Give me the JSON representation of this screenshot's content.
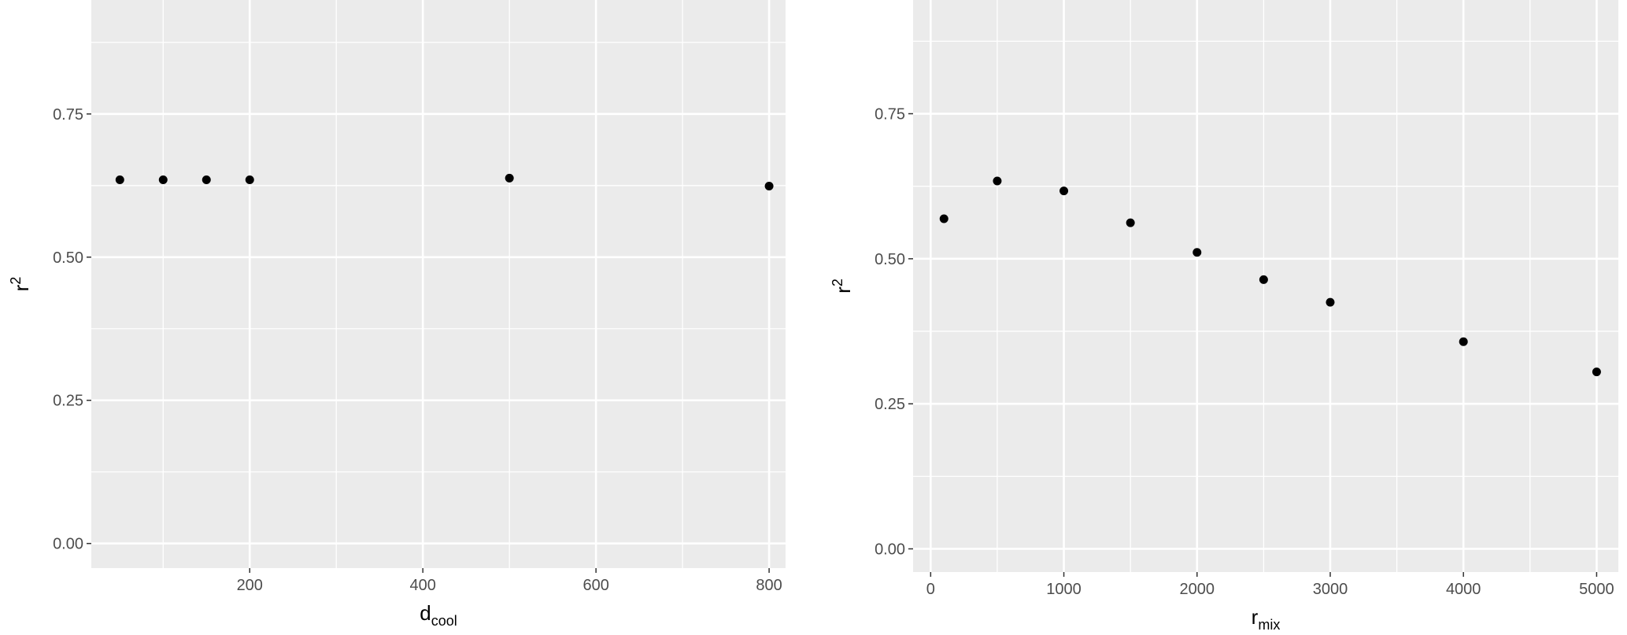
{
  "chart_data": [
    {
      "type": "scatter",
      "xlabel": {
        "main": "d",
        "subscript": "cool"
      },
      "ylabel": {
        "main": "r",
        "superscript": "2"
      },
      "x": [
        50,
        100,
        150,
        200,
        500,
        800
      ],
      "y": [
        0.635,
        0.635,
        0.635,
        0.635,
        0.638,
        0.624
      ],
      "xlim": [
        17,
        819
      ],
      "ylim": [
        -0.043,
        0.949
      ],
      "xticks": [
        200,
        400,
        600,
        800
      ],
      "xminor": [
        100,
        300,
        500,
        700
      ],
      "yticks": [
        0.0,
        0.25,
        0.5,
        0.75
      ],
      "ytick_labels": [
        "0.00",
        "0.25",
        "0.50",
        "0.75"
      ],
      "yminor": [
        0.125,
        0.375,
        0.625,
        0.875
      ],
      "grid": true,
      "panel_color": "#ebebeb",
      "point_color": "#000000"
    },
    {
      "type": "scatter",
      "xlabel": {
        "main": "r",
        "subscript": "mix"
      },
      "ylabel": {
        "main": "r",
        "superscript": "2"
      },
      "x": [
        100,
        500,
        1000,
        1500,
        2000,
        2500,
        3000,
        4000,
        5000
      ],
      "y": [
        0.569,
        0.634,
        0.617,
        0.562,
        0.511,
        0.464,
        0.425,
        0.357,
        0.305
      ],
      "xlim": [
        -132,
        5163
      ],
      "ylim": [
        -0.04,
        0.946
      ],
      "xticks": [
        0,
        1000,
        2000,
        3000,
        4000,
        5000
      ],
      "xminor": [
        500,
        1500,
        2500,
        3500,
        4500
      ],
      "yticks": [
        0.0,
        0.25,
        0.5,
        0.75
      ],
      "ytick_labels": [
        "0.00",
        "0.25",
        "0.50",
        "0.75"
      ],
      "yminor": [
        0.125,
        0.375,
        0.625,
        0.875
      ],
      "grid": true,
      "panel_color": "#ebebeb",
      "point_color": "#000000"
    }
  ]
}
